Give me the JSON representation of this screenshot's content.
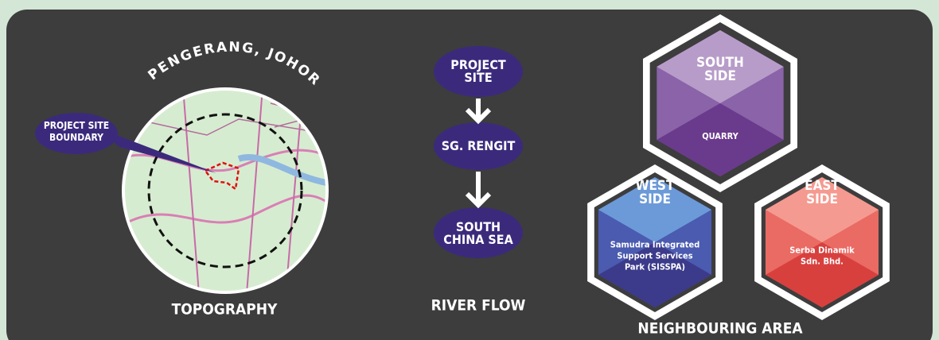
{
  "topography": {
    "place": "PENGERANG, JOHOR",
    "callout": "PROJECT SITE BOUNDARY",
    "caption": "TOPOGRAPHY"
  },
  "river_flow": {
    "steps": [
      "PROJECT SITE",
      "SG. RENGIT",
      "SOUTH CHINA SEA"
    ],
    "caption": "RIVER FLOW"
  },
  "neighbouring_area": {
    "caption": "NEIGHBOURING AREA",
    "sides": [
      {
        "side": "SOUTH SIDE",
        "occupant": "QUARRY"
      },
      {
        "side": "WEST SIDE",
        "occupant": "Samudra Integrated Support Services Park (SISSPA)"
      },
      {
        "side": "EAST SIDE",
        "occupant": "Serba Dinamik Sdn. Bhd."
      }
    ]
  }
}
